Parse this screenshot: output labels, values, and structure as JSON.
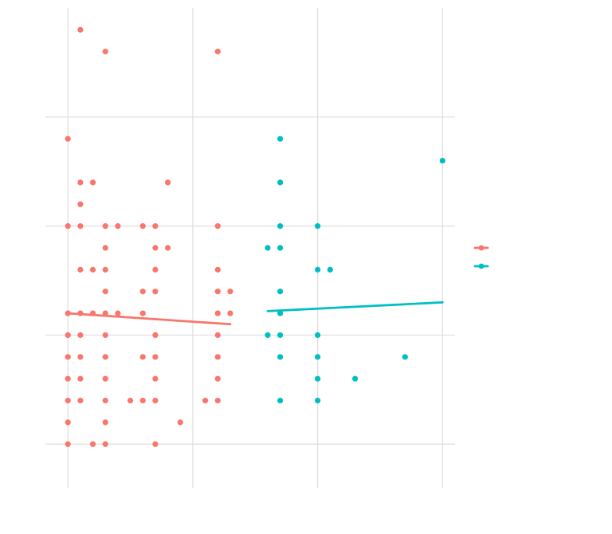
{
  "chart_data": {
    "type": "scatter",
    "title": "",
    "xlabel": "",
    "ylabel": "",
    "xlim": [
      -0.18,
      3.1
    ],
    "ylim": [
      -0.2,
      2.0
    ],
    "x_ticks": [
      0,
      1,
      2,
      3
    ],
    "y_ticks": [
      0,
      0.5,
      1,
      1.5
    ],
    "x_tick_labels": [
      "",
      "",
      "",
      ""
    ],
    "y_tick_labels": [
      "",
      "",
      "",
      ""
    ],
    "grid": true,
    "legend_position": "right",
    "series": [
      {
        "color": "#F8766D",
        "points": [
          [
            0.1,
            1.9
          ],
          [
            0.3,
            1.8
          ],
          [
            1.2,
            1.8
          ],
          [
            0,
            1.4
          ],
          [
            0.1,
            1.2
          ],
          [
            0.2,
            1.2
          ],
          [
            0.8,
            1.2
          ],
          [
            0.1,
            1.1
          ],
          [
            0,
            1.0
          ],
          [
            0.1,
            1.0
          ],
          [
            0.3,
            1.0
          ],
          [
            0.4,
            1.0
          ],
          [
            0.6,
            1.0
          ],
          [
            0.7,
            1.0
          ],
          [
            1.2,
            1.0
          ],
          [
            0.3,
            0.9
          ],
          [
            0.7,
            0.9
          ],
          [
            0.8,
            0.9
          ],
          [
            0.1,
            0.8
          ],
          [
            0.2,
            0.8
          ],
          [
            0.3,
            0.8
          ],
          [
            0.7,
            0.8
          ],
          [
            1.2,
            0.8
          ],
          [
            0.3,
            0.7
          ],
          [
            0.6,
            0.7
          ],
          [
            0.7,
            0.7
          ],
          [
            1.2,
            0.7
          ],
          [
            1.3,
            0.7
          ],
          [
            0,
            0.6
          ],
          [
            0.1,
            0.6
          ],
          [
            0.2,
            0.6
          ],
          [
            0.3,
            0.6
          ],
          [
            0.4,
            0.6
          ],
          [
            0.6,
            0.6
          ],
          [
            1.2,
            0.6
          ],
          [
            1.3,
            0.6
          ],
          [
            0,
            0.5
          ],
          [
            0.1,
            0.5
          ],
          [
            0.3,
            0.5
          ],
          [
            0.7,
            0.5
          ],
          [
            1.2,
            0.5
          ],
          [
            0,
            0.4
          ],
          [
            0.1,
            0.4
          ],
          [
            0.3,
            0.4
          ],
          [
            0.6,
            0.4
          ],
          [
            0.7,
            0.4
          ],
          [
            1.2,
            0.4
          ],
          [
            0,
            0.3
          ],
          [
            0.1,
            0.3
          ],
          [
            0.3,
            0.3
          ],
          [
            0.7,
            0.3
          ],
          [
            1.2,
            0.3
          ],
          [
            0,
            0.2
          ],
          [
            0.1,
            0.2
          ],
          [
            0.3,
            0.2
          ],
          [
            0.5,
            0.2
          ],
          [
            0.6,
            0.2
          ],
          [
            0.7,
            0.2
          ],
          [
            1.1,
            0.2
          ],
          [
            1.2,
            0.2
          ],
          [
            0,
            0.1
          ],
          [
            0.3,
            0.1
          ],
          [
            0.9,
            0.1
          ],
          [
            0,
            0.0
          ],
          [
            0.2,
            0.0
          ],
          [
            0.3,
            0.0
          ],
          [
            0.7,
            0.0
          ]
        ],
        "trend": [
          [
            0,
            0.6
          ],
          [
            1.3,
            0.55
          ]
        ]
      },
      {
        "color": "#00BFC4",
        "points": [
          [
            1.7,
            1.4
          ],
          [
            3.0,
            1.3
          ],
          [
            1.7,
            1.2
          ],
          [
            1.7,
            1.0
          ],
          [
            2.0,
            1.0
          ],
          [
            1.6,
            0.9
          ],
          [
            1.7,
            0.9
          ],
          [
            2.0,
            0.8
          ],
          [
            2.1,
            0.8
          ],
          [
            1.7,
            0.7
          ],
          [
            1.7,
            0.6
          ],
          [
            1.6,
            0.5
          ],
          [
            1.7,
            0.5
          ],
          [
            2.0,
            0.5
          ],
          [
            1.7,
            0.4
          ],
          [
            2.0,
            0.4
          ],
          [
            2.7,
            0.4
          ],
          [
            2.0,
            0.3
          ],
          [
            2.3,
            0.3
          ],
          [
            1.7,
            0.2
          ],
          [
            2.0,
            0.2
          ]
        ],
        "trend": [
          [
            1.6,
            0.61
          ],
          [
            3.0,
            0.65
          ]
        ]
      }
    ]
  }
}
